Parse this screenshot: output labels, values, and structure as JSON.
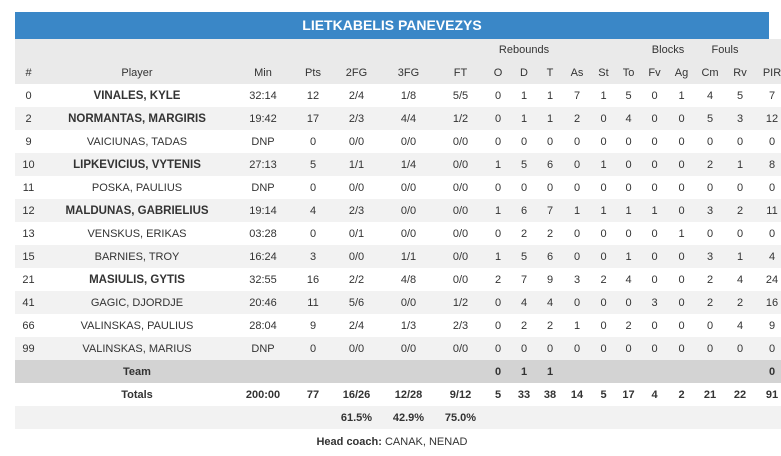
{
  "team_name": "LIETKABELIS PANEVEZYS",
  "group_headers": {
    "rebounds": "Rebounds",
    "blocks": "Blocks",
    "fouls": "Fouls"
  },
  "columns": [
    "#",
    "Player",
    "Min",
    "Pts",
    "2FG",
    "3FG",
    "FT",
    "O",
    "D",
    "T",
    "As",
    "St",
    "To",
    "Fv",
    "Ag",
    "Cm",
    "Rv",
    "PIR"
  ],
  "players": [
    {
      "num": "0",
      "name": "VINALES, KYLE",
      "starter": true,
      "min": "32:14",
      "pts": "12",
      "fg2": "2/4",
      "fg3": "1/8",
      "ft": "5/5",
      "o": "0",
      "d": "1",
      "t": "1",
      "as": "7",
      "st": "1",
      "to": "5",
      "fv": "0",
      "ag": "1",
      "cm": "4",
      "rv": "5",
      "pir": "7"
    },
    {
      "num": "2",
      "name": "NORMANTAS, MARGIRIS",
      "starter": true,
      "min": "19:42",
      "pts": "17",
      "fg2": "2/3",
      "fg3": "4/4",
      "ft": "1/2",
      "o": "0",
      "d": "1",
      "t": "1",
      "as": "2",
      "st": "0",
      "to": "4",
      "fv": "0",
      "ag": "0",
      "cm": "5",
      "rv": "3",
      "pir": "12"
    },
    {
      "num": "9",
      "name": "VAICIUNAS, TADAS",
      "starter": false,
      "min": "DNP",
      "pts": "0",
      "fg2": "0/0",
      "fg3": "0/0",
      "ft": "0/0",
      "o": "0",
      "d": "0",
      "t": "0",
      "as": "0",
      "st": "0",
      "to": "0",
      "fv": "0",
      "ag": "0",
      "cm": "0",
      "rv": "0",
      "pir": "0"
    },
    {
      "num": "10",
      "name": "LIPKEVICIUS, VYTENIS",
      "starter": true,
      "min": "27:13",
      "pts": "5",
      "fg2": "1/1",
      "fg3": "1/4",
      "ft": "0/0",
      "o": "1",
      "d": "5",
      "t": "6",
      "as": "0",
      "st": "1",
      "to": "0",
      "fv": "0",
      "ag": "0",
      "cm": "2",
      "rv": "1",
      "pir": "8"
    },
    {
      "num": "11",
      "name": "POSKA, PAULIUS",
      "starter": false,
      "min": "DNP",
      "pts": "0",
      "fg2": "0/0",
      "fg3": "0/0",
      "ft": "0/0",
      "o": "0",
      "d": "0",
      "t": "0",
      "as": "0",
      "st": "0",
      "to": "0",
      "fv": "0",
      "ag": "0",
      "cm": "0",
      "rv": "0",
      "pir": "0"
    },
    {
      "num": "12",
      "name": "MALDUNAS, GABRIELIUS",
      "starter": true,
      "min": "19:14",
      "pts": "4",
      "fg2": "2/3",
      "fg3": "0/0",
      "ft": "0/0",
      "o": "1",
      "d": "6",
      "t": "7",
      "as": "1",
      "st": "1",
      "to": "1",
      "fv": "1",
      "ag": "0",
      "cm": "3",
      "rv": "2",
      "pir": "11"
    },
    {
      "num": "13",
      "name": "VENSKUS, ERIKAS",
      "starter": false,
      "min": "03:28",
      "pts": "0",
      "fg2": "0/1",
      "fg3": "0/0",
      "ft": "0/0",
      "o": "0",
      "d": "2",
      "t": "2",
      "as": "0",
      "st": "0",
      "to": "0",
      "fv": "0",
      "ag": "1",
      "cm": "0",
      "rv": "0",
      "pir": "0"
    },
    {
      "num": "15",
      "name": "BARNIES, TROY",
      "starter": false,
      "min": "16:24",
      "pts": "3",
      "fg2": "0/0",
      "fg3": "1/1",
      "ft": "0/0",
      "o": "1",
      "d": "5",
      "t": "6",
      "as": "0",
      "st": "0",
      "to": "1",
      "fv": "0",
      "ag": "0",
      "cm": "3",
      "rv": "1",
      "pir": "4"
    },
    {
      "num": "21",
      "name": "MASIULIS, GYTIS",
      "starter": true,
      "min": "32:55",
      "pts": "16",
      "fg2": "2/2",
      "fg3": "4/8",
      "ft": "0/0",
      "o": "2",
      "d": "7",
      "t": "9",
      "as": "3",
      "st": "2",
      "to": "4",
      "fv": "0",
      "ag": "0",
      "cm": "2",
      "rv": "4",
      "pir": "24"
    },
    {
      "num": "41",
      "name": "GAGIC, DJORDJE",
      "starter": false,
      "min": "20:46",
      "pts": "11",
      "fg2": "5/6",
      "fg3": "0/0",
      "ft": "1/2",
      "o": "0",
      "d": "4",
      "t": "4",
      "as": "0",
      "st": "0",
      "to": "0",
      "fv": "3",
      "ag": "0",
      "cm": "2",
      "rv": "2",
      "pir": "16"
    },
    {
      "num": "66",
      "name": "VALINSKAS, PAULIUS",
      "starter": false,
      "min": "28:04",
      "pts": "9",
      "fg2": "2/4",
      "fg3": "1/3",
      "ft": "2/3",
      "o": "0",
      "d": "2",
      "t": "2",
      "as": "1",
      "st": "0",
      "to": "2",
      "fv": "0",
      "ag": "0",
      "cm": "0",
      "rv": "4",
      "pir": "9"
    },
    {
      "num": "99",
      "name": "VALINSKAS, MARIUS",
      "starter": false,
      "min": "DNP",
      "pts": "0",
      "fg2": "0/0",
      "fg3": "0/0",
      "ft": "0/0",
      "o": "0",
      "d": "0",
      "t": "0",
      "as": "0",
      "st": "0",
      "to": "0",
      "fv": "0",
      "ag": "0",
      "cm": "0",
      "rv": "0",
      "pir": "0"
    }
  ],
  "team_row": {
    "label": "Team",
    "o": "0",
    "d": "1",
    "t": "1",
    "pir": "0"
  },
  "totals": {
    "label": "Totals",
    "min": "200:00",
    "pts": "77",
    "fg2": "16/26",
    "fg3": "12/28",
    "ft": "9/12",
    "o": "5",
    "d": "33",
    "t": "38",
    "as": "14",
    "st": "5",
    "to": "17",
    "fv": "4",
    "ag": "2",
    "cm": "21",
    "rv": "22",
    "pir": "91"
  },
  "percentages": {
    "fg2": "61.5%",
    "fg3": "42.9%",
    "ft": "75.0%"
  },
  "coach": {
    "label": "Head coach:",
    "name": "CANAK, NENAD"
  },
  "colors": {
    "header_bg": "#3a87c7",
    "band_bg": "#eaeaea",
    "team_bg": "#d3d3d3"
  }
}
